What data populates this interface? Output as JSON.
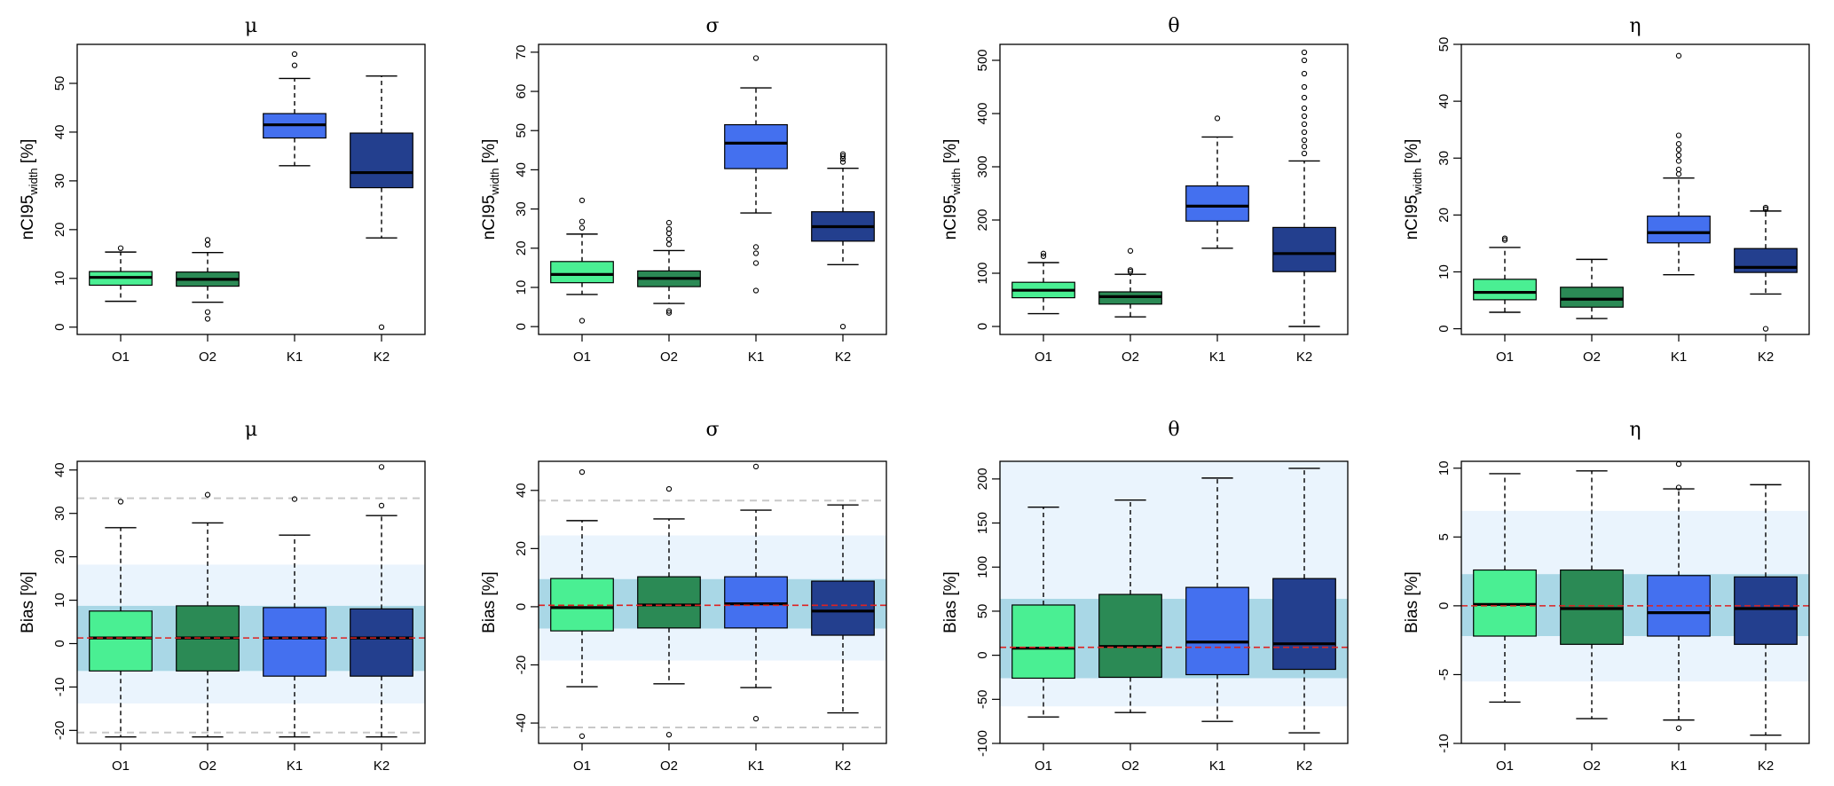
{
  "colors": {
    "O1": "#4aef93",
    "O2": "#2b8a55",
    "K1": "#4470ef",
    "K2": "#233f8e",
    "band_inner": "#a9d7e6",
    "band_outer": "#eaf4fd",
    "ref_dashed": "#c8c8c8",
    "red_line": "#dd2222",
    "axis": "#000000"
  },
  "chart_data": [
    {
      "type": "boxplot",
      "id": "width-mu",
      "title": "μ",
      "ylabel": "nCI95",
      "ylabel_sub": "width",
      "ylabel_suffix": " [%]",
      "ylim": [
        -1.5,
        58
      ],
      "yticks": [
        0,
        10,
        20,
        30,
        40,
        50
      ],
      "categories": [
        "O1",
        "O2",
        "K1",
        "K2"
      ],
      "boxes": [
        {
          "category": "O1",
          "min": 5.3,
          "q1": 8.6,
          "median": 10.2,
          "q3": 11.4,
          "max": 15.4,
          "outliers": [
            16.2
          ]
        },
        {
          "category": "O2",
          "min": 5.1,
          "q1": 8.4,
          "median": 9.8,
          "q3": 11.3,
          "max": 15.3,
          "outliers": [
            16.9,
            17.9,
            3.1,
            1.7
          ]
        },
        {
          "category": "K1",
          "min": 33.1,
          "q1": 38.8,
          "median": 41.5,
          "q3": 43.8,
          "max": 51.0,
          "outliers": [
            53.7,
            56.0
          ]
        },
        {
          "category": "K2",
          "min": 18.3,
          "q1": 28.6,
          "median": 31.7,
          "q3": 39.8,
          "max": 51.5,
          "outliers": [
            0.0
          ]
        }
      ]
    },
    {
      "type": "boxplot",
      "id": "width-sigma",
      "title": "σ",
      "ylabel": "nCI95",
      "ylabel_sub": "width",
      "ylabel_suffix": " [%]",
      "ylim": [
        -2,
        72
      ],
      "yticks": [
        0,
        10,
        20,
        30,
        40,
        50,
        60,
        70
      ],
      "categories": [
        "O1",
        "O2",
        "K1",
        "K2"
      ],
      "boxes": [
        {
          "category": "O1",
          "min": 8.2,
          "q1": 11.2,
          "median": 13.3,
          "q3": 16.6,
          "max": 23.6,
          "outliers": [
            25.2,
            26.8,
            32.2,
            1.5
          ]
        },
        {
          "category": "O2",
          "min": 5.9,
          "q1": 10.2,
          "median": 12.3,
          "q3": 14.2,
          "max": 19.4,
          "outliers": [
            21.0,
            22.3,
            23.8,
            24.9,
            26.5,
            4.0,
            3.5
          ]
        },
        {
          "category": "K1",
          "min": 29.0,
          "q1": 40.3,
          "median": 46.8,
          "q3": 51.5,
          "max": 60.9,
          "outliers": [
            68.5,
            20.3,
            18.7,
            16.2,
            9.2
          ]
        },
        {
          "category": "K2",
          "min": 15.8,
          "q1": 21.8,
          "median": 25.5,
          "q3": 29.3,
          "max": 40.4,
          "outliers": [
            42.0,
            42.8,
            43.5,
            44.0,
            0.0
          ]
        }
      ]
    },
    {
      "type": "boxplot",
      "id": "width-theta",
      "title": "θ",
      "ylabel": "nCI95",
      "ylabel_sub": "width",
      "ylabel_suffix": " [%]",
      "ylim": [
        -15,
        530
      ],
      "yticks": [
        0,
        100,
        200,
        300,
        400,
        500
      ],
      "categories": [
        "O1",
        "O2",
        "K1",
        "K2"
      ],
      "boxes": [
        {
          "category": "O1",
          "min": 24,
          "q1": 54,
          "median": 68,
          "q3": 83,
          "max": 120,
          "outliers": [
            132,
            137
          ]
        },
        {
          "category": "O2",
          "min": 18,
          "q1": 42,
          "median": 56,
          "q3": 65,
          "max": 98,
          "outliers": [
            103,
            106,
            142
          ]
        },
        {
          "category": "K1",
          "min": 147,
          "q1": 198,
          "median": 226,
          "q3": 264,
          "max": 356,
          "outliers": [
            391
          ]
        },
        {
          "category": "K2",
          "min": 0,
          "q1": 103,
          "median": 137,
          "q3": 186,
          "max": 311,
          "outliers": [
            325,
            338,
            350,
            365,
            380,
            395,
            410,
            430,
            450,
            475,
            500,
            515
          ]
        }
      ]
    },
    {
      "type": "boxplot",
      "id": "width-eta",
      "title": "η",
      "ylabel": "nCI95",
      "ylabel_sub": "width",
      "ylabel_suffix": " [%]",
      "ylim": [
        -1,
        50
      ],
      "yticks": [
        0,
        10,
        20,
        30,
        40,
        50
      ],
      "categories": [
        "O1",
        "O2",
        "K1",
        "K2"
      ],
      "boxes": [
        {
          "category": "O1",
          "min": 2.9,
          "q1": 5.1,
          "median": 6.4,
          "q3": 8.7,
          "max": 14.3,
          "outliers": [
            15.6,
            15.9
          ]
        },
        {
          "category": "O2",
          "min": 1.8,
          "q1": 3.8,
          "median": 5.2,
          "q3": 7.3,
          "max": 12.2,
          "outliers": []
        },
        {
          "category": "K1",
          "min": 9.5,
          "q1": 15.1,
          "median": 16.9,
          "q3": 19.8,
          "max": 26.5,
          "outliers": [
            27.2,
            28.0,
            29.5,
            30.5,
            31.5,
            32.5,
            34.0,
            48.0
          ]
        },
        {
          "category": "K2",
          "min": 6.1,
          "q1": 9.9,
          "median": 10.8,
          "q3": 14.1,
          "max": 20.7,
          "outliers": [
            21.0,
            21.3,
            0.0
          ]
        }
      ]
    },
    {
      "type": "boxplot",
      "id": "bias-mu",
      "title": "μ",
      "ylabel": "Bias [%]",
      "ylim": [
        -23,
        42
      ],
      "yticks": [
        -20,
        -10,
        0,
        10,
        20,
        30,
        40
      ],
      "categories": [
        "O1",
        "O2",
        "K1",
        "K2"
      ],
      "band_outer": [
        -13.8,
        18.2
      ],
      "band_inner": [
        -6.3,
        8.7
      ],
      "ref_lines": [
        33.5,
        -20.5
      ],
      "red_line": 1.3,
      "boxes": [
        {
          "category": "O1",
          "min": -21.5,
          "q1": -6.3,
          "median": 1.3,
          "q3": 7.5,
          "max": 26.7,
          "outliers": [
            32.7
          ]
        },
        {
          "category": "O2",
          "min": -21.5,
          "q1": -6.3,
          "median": 1.3,
          "q3": 8.7,
          "max": 27.8,
          "outliers": [
            34.3
          ]
        },
        {
          "category": "K1",
          "min": -21.5,
          "q1": -7.5,
          "median": 1.3,
          "q3": 8.3,
          "max": 25.0,
          "outliers": [
            33.3
          ]
        },
        {
          "category": "K2",
          "min": -21.5,
          "q1": -7.5,
          "median": 1.3,
          "q3": 8.0,
          "max": 29.5,
          "outliers": [
            31.8,
            40.7
          ]
        }
      ]
    },
    {
      "type": "boxplot",
      "id": "bias-sigma",
      "title": "σ",
      "ylabel": "Bias [%]",
      "ylim": [
        -47,
        50
      ],
      "yticks": [
        -40,
        -20,
        0,
        20,
        40
      ],
      "categories": [
        "O1",
        "O2",
        "K1",
        "K2"
      ],
      "band_outer": [
        -18.5,
        24.5
      ],
      "band_inner": [
        -7.5,
        9.5
      ],
      "ref_lines": [
        36.5,
        -41.5
      ],
      "red_line": 0.5,
      "boxes": [
        {
          "category": "O1",
          "min": -27.5,
          "q1": -8.3,
          "median": -0.3,
          "q3": 9.7,
          "max": 29.6,
          "outliers": [
            46.3,
            -44.5
          ]
        },
        {
          "category": "O2",
          "min": -26.5,
          "q1": -7.3,
          "median": 0.6,
          "q3": 10.3,
          "max": 30.2,
          "outliers": [
            40.5,
            -44.0
          ]
        },
        {
          "category": "K1",
          "min": -27.8,
          "q1": -7.3,
          "median": 1.0,
          "q3": 10.3,
          "max": 33.2,
          "outliers": [
            48.2,
            -38.5
          ]
        },
        {
          "category": "K2",
          "min": -36.5,
          "q1": -9.8,
          "median": -1.5,
          "q3": 8.8,
          "max": 35.0,
          "outliers": []
        }
      ]
    },
    {
      "type": "boxplot",
      "id": "bias-theta",
      "title": "θ",
      "ylabel": "Bias [%]",
      "ylim": [
        -100,
        220
      ],
      "yticks": [
        -100,
        -50,
        0,
        50,
        100,
        150,
        200
      ],
      "categories": [
        "O1",
        "O2",
        "K1",
        "K2"
      ],
      "band_outer": [
        -58,
        220
      ],
      "band_inner": [
        -26,
        64
      ],
      "ref_lines": [],
      "red_line": 9,
      "boxes": [
        {
          "category": "O1",
          "min": -70,
          "q1": -26,
          "median": 8,
          "q3": 57,
          "max": 168,
          "outliers": []
        },
        {
          "category": "O2",
          "min": -65,
          "q1": -25,
          "median": 10,
          "q3": 69,
          "max": 176,
          "outliers": []
        },
        {
          "category": "K1",
          "min": -75,
          "q1": -22,
          "median": 15,
          "q3": 77,
          "max": 201,
          "outliers": []
        },
        {
          "category": "K2",
          "min": -88,
          "q1": -16,
          "median": 13,
          "q3": 87,
          "max": 212,
          "outliers": []
        }
      ]
    },
    {
      "type": "boxplot",
      "id": "bias-eta",
      "title": "η",
      "ylabel": "Bias [%]",
      "ylim": [
        -10,
        10.5
      ],
      "yticks": [
        -10,
        -5,
        0,
        5,
        10
      ],
      "categories": [
        "O1",
        "O2",
        "K1",
        "K2"
      ],
      "band_outer": [
        -5.5,
        6.9
      ],
      "band_inner": [
        -2.2,
        2.3
      ],
      "ref_lines": [],
      "red_line": 0,
      "boxes": [
        {
          "category": "O1",
          "min": -7.0,
          "q1": -2.2,
          "median": 0.1,
          "q3": 2.6,
          "max": 9.6,
          "outliers": []
        },
        {
          "category": "O2",
          "min": -8.2,
          "q1": -2.8,
          "median": -0.2,
          "q3": 2.6,
          "max": 9.8,
          "outliers": []
        },
        {
          "category": "K1",
          "min": -8.3,
          "q1": -2.2,
          "median": -0.5,
          "q3": 2.2,
          "max": 8.5,
          "outliers": [
            8.6,
            10.3,
            -8.9
          ]
        },
        {
          "category": "K2",
          "min": -9.4,
          "q1": -2.8,
          "median": -0.2,
          "q3": 2.1,
          "max": 8.8,
          "outliers": []
        }
      ]
    }
  ]
}
